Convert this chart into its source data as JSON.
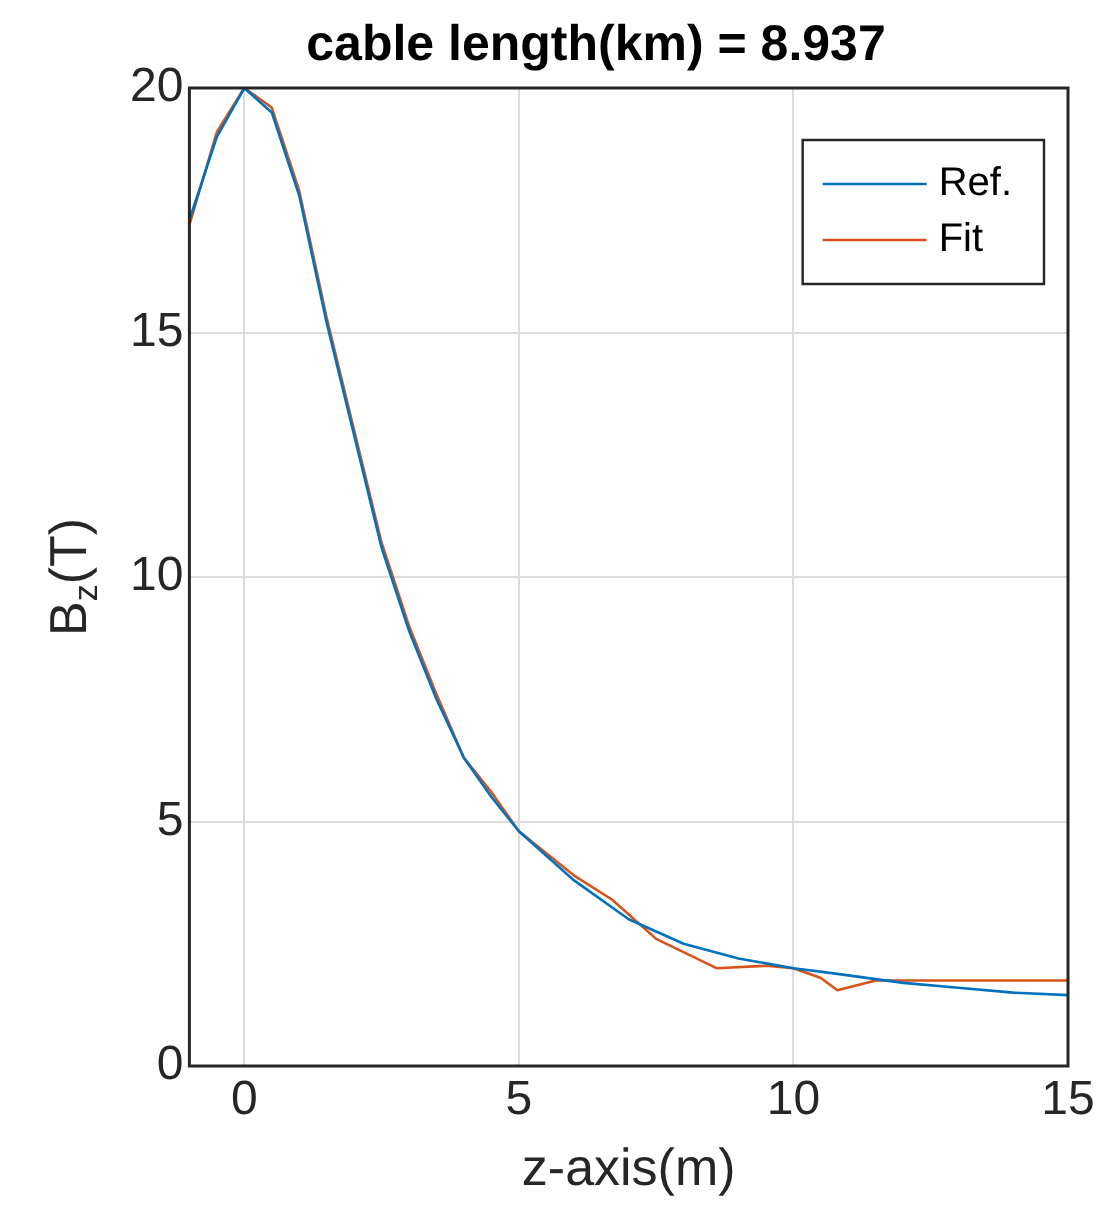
{
  "chart_data": {
    "type": "line",
    "title": "cable length(km) = 8.937",
    "xlabel": "z-axis(m)",
    "ylabel": "B$_{z}$(T)",
    "xlim": [
      -1,
      15
    ],
    "ylim": [
      0,
      20
    ],
    "xticks": [
      0,
      5,
      10,
      15
    ],
    "yticks": [
      0,
      5,
      10,
      15,
      20
    ],
    "grid": true,
    "legend": "top right",
    "marker": "none",
    "line_style": "solid",
    "series": [
      {
        "name": "Ref.",
        "color": "#0072bd",
        "x": [
          -1,
          -0.5,
          0,
          0.5,
          1,
          1.5,
          2,
          2.5,
          3,
          3.5,
          4,
          4.5,
          5,
          6,
          7,
          8,
          9,
          10,
          10.7,
          12,
          13,
          14,
          15
        ],
        "values": [
          17.3,
          19,
          20,
          19.5,
          17.8,
          15.2,
          12.9,
          10.6,
          8.9,
          7.5,
          6.3,
          5.5,
          4.8,
          3.8,
          3.0,
          2.5,
          2.2,
          2.0,
          1.9,
          1.7,
          1.6,
          1.5,
          1.45
        ]
      },
      {
        "name": "Fit",
        "color": "#d95319",
        "x": [
          -1,
          -0.5,
          0,
          0.5,
          1,
          1.5,
          2,
          2.5,
          3,
          3.5,
          4,
          4.5,
          5,
          6,
          6.7,
          7.5,
          8.6,
          9.5,
          10,
          10.5,
          10.8,
          11.5,
          12,
          13,
          14,
          15
        ],
        "values": [
          17.2,
          19.1,
          20,
          19.6,
          17.9,
          15.3,
          13,
          10.7,
          9,
          7.6,
          6.3,
          5.6,
          4.8,
          3.9,
          3.4,
          2.6,
          2.0,
          2.05,
          2.0,
          1.8,
          1.55,
          1.75,
          1.75,
          1.75,
          1.75,
          1.75
        ]
      }
    ]
  }
}
